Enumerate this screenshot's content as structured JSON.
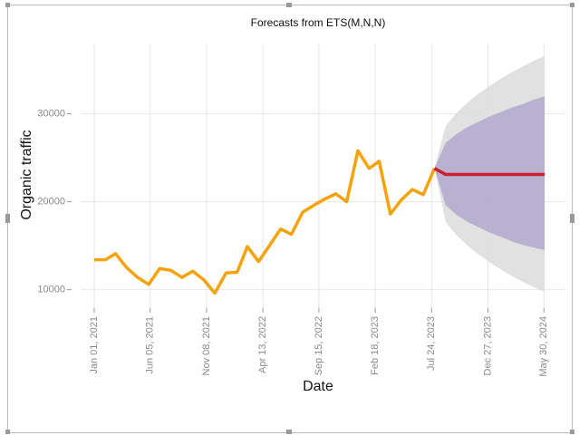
{
  "chart_data": {
    "type": "line",
    "title": "Forecasts from ETS(M,N,N)",
    "xlabel": "Date",
    "ylabel": "Organic traffic",
    "grid": true,
    "x": [
      "2021-01-01",
      "2021-02-01",
      "2021-03-01",
      "2021-04-01",
      "2021-05-01",
      "2021-06-01",
      "2021-07-01",
      "2021-08-01",
      "2021-09-01",
      "2021-10-01",
      "2021-11-01",
      "2021-12-01",
      "2022-01-01",
      "2022-02-01",
      "2022-03-01",
      "2022-04-01",
      "2022-05-01",
      "2022-06-01",
      "2022-07-01",
      "2022-08-01",
      "2022-09-01",
      "2022-10-01",
      "2022-11-01",
      "2022-12-01",
      "2023-01-01",
      "2023-02-01",
      "2023-03-01",
      "2023-04-01",
      "2023-05-01",
      "2023-06-01",
      "2023-07-01",
      "2023-08-01"
    ],
    "series": [
      {
        "color": "#f5a30a",
        "values": [
          13400,
          13400,
          14100,
          12500,
          11400,
          10600,
          12400,
          12200,
          11400,
          12100,
          11100,
          9600,
          11900,
          12000,
          14900,
          13200,
          15000,
          16900,
          16300,
          18800,
          19600,
          20300,
          20900,
          20000,
          25800,
          23800,
          24600,
          18600,
          20200,
          21400,
          20800,
          23800
        ]
      }
    ],
    "forecast": {
      "x": [
        "2023-08-01",
        "2023-09-01",
        "2023-10-01",
        "2023-11-01",
        "2023-12-01",
        "2024-01-01",
        "2024-02-01",
        "2024-03-01",
        "2024-04-01",
        "2024-05-01",
        "2024-06-01"
      ],
      "color": "#cc1f2f",
      "values": [
        23800,
        23100,
        23100,
        23100,
        23100,
        23100,
        23100,
        23100,
        23100,
        23100,
        23100
      ],
      "bands": [
        {
          "color": "#dcdcdc",
          "lower": [
            23800,
            17700,
            16200,
            15000,
            14000,
            13100,
            12300,
            11600,
            10900,
            10300,
            9800
          ],
          "upper": [
            23800,
            28600,
            30100,
            31300,
            32300,
            33200,
            34000,
            34700,
            35400,
            36000,
            36600
          ]
        },
        {
          "color": "#b0a8cc",
          "lower": [
            23800,
            19600,
            18500,
            17700,
            17100,
            16500,
            16000,
            15500,
            15100,
            14800,
            14500
          ],
          "upper": [
            23800,
            26700,
            27700,
            28500,
            29100,
            29700,
            30200,
            30700,
            31100,
            31600,
            32000
          ]
        }
      ]
    },
    "xlim": [
      "2020-11-27",
      "2024-07-31"
    ],
    "xticks": [
      {
        "value": "2021-01-01",
        "label": "Jan 01, 2021"
      },
      {
        "value": "2021-06-05",
        "label": "Jun 05, 2021"
      },
      {
        "value": "2021-11-08",
        "label": "Nov 08, 2021"
      },
      {
        "value": "2022-04-13",
        "label": "Apr 13, 2022"
      },
      {
        "value": "2022-09-15",
        "label": "Sep 15, 2022"
      },
      {
        "value": "2023-02-18",
        "label": "Feb 18, 2023"
      },
      {
        "value": "2023-07-24",
        "label": "Jul 24, 2023"
      },
      {
        "value": "2023-12-27",
        "label": "Dec 27, 2023"
      },
      {
        "value": "2024-05-30",
        "label": "May 30, 2024"
      }
    ],
    "ylim": [
      7900,
      38000
    ],
    "yticks": [
      10000,
      20000,
      30000
    ]
  }
}
